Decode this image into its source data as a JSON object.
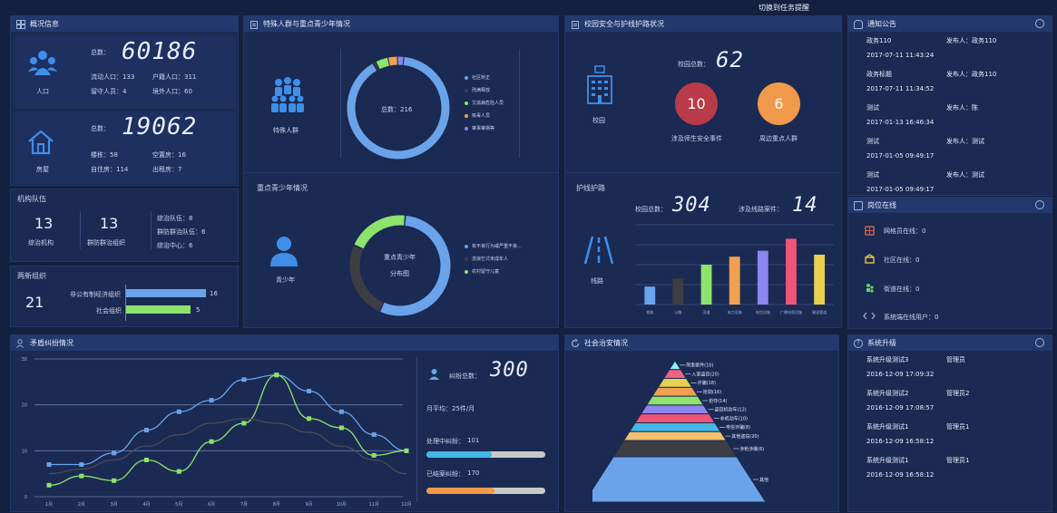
{
  "top_link": "切换到任务提醒",
  "overview": {
    "title": "概况信息",
    "population": {
      "label": "人口",
      "total_label": "总数：",
      "total": "60186",
      "items": [
        [
          "流动人口：133",
          "户籍人口：311"
        ],
        [
          "留守人员：4",
          "境外人口：60"
        ]
      ]
    },
    "housing": {
      "label": "房屋",
      "total_label": "总数：",
      "total": "19062",
      "items": [
        [
          "楼栋：58",
          "空置房：16"
        ],
        [
          "自住房：114",
          "出租房：7"
        ]
      ]
    }
  },
  "org": {
    "title": "机构队伍",
    "cols": [
      {
        "value": "13",
        "label": "综治机构"
      },
      {
        "value": "13",
        "label": "群防群治组织"
      }
    ],
    "list": [
      "综治队伍：8",
      "群防群治队伍：6",
      "综治中心：6"
    ]
  },
  "two_new": {
    "title": "两新组织",
    "total": "21",
    "bars": [
      {
        "label": "非公有制经济组织",
        "value": 16,
        "color": "#6aa3ea"
      },
      {
        "label": "社会组织",
        "value": 5,
        "color": "#8de36c"
      }
    ]
  },
  "special": {
    "title": "特殊人群与重点青少年情况",
    "group_label": "特殊人群",
    "center": "总数：216",
    "legend": [
      {
        "name": "社区矫正",
        "color": "#6aa3ea"
      },
      {
        "name": "刑满释放",
        "color": "#3d3d44"
      },
      {
        "name": "艾滋病危险人员",
        "color": "#8de36c"
      },
      {
        "name": "吸毒人员",
        "color": "#f0a050"
      },
      {
        "name": "肇事肇祸等",
        "color": "#8b86f0"
      }
    ],
    "shares": [
      0.9,
      0.01,
      0.04,
      0.03,
      0.02
    ]
  },
  "youth": {
    "title": "重点青少年情况",
    "label": "青少年",
    "center": [
      "重点青少年",
      "分布图"
    ],
    "legend": [
      {
        "name": "有不良行为或严重不良...",
        "color": "#6aa3ea"
      },
      {
        "name": "流浪乞讨未成年人",
        "color": "#3d3d44"
      },
      {
        "name": "农村留守儿童",
        "color": "#8de36c"
      }
    ],
    "shares": [
      0.55,
      0.25,
      0.2
    ]
  },
  "campus": {
    "title": "校园安全与护线护路状况",
    "label": "校园",
    "total_label": "校园总数：",
    "total": "62",
    "circles": [
      {
        "value": "10",
        "label": "涉及师生安全事件",
        "color": "#b93a48"
      },
      {
        "value": "6",
        "label": "周边重点人群",
        "color": "#f0994a"
      }
    ]
  },
  "road": {
    "title": "护线护路",
    "label": "线路",
    "total_label": "校园总数：",
    "total": "304",
    "cases_label": "涉及线路案件：",
    "cases": "14"
  },
  "road_chart": {
    "type": "bar",
    "categories": [
      "铁路",
      "公路",
      "河道",
      "电力设施",
      "电信设施",
      "广播电视设施",
      "输油管道"
    ],
    "values": [
      45,
      65,
      100,
      120,
      135,
      165,
      125
    ],
    "colors": [
      "#6aa3ea",
      "#3d3d44",
      "#8de36c",
      "#f0a050",
      "#8b86f0",
      "#ee5577",
      "#e8d050"
    ],
    "ylim": [
      0,
      200
    ]
  },
  "notice": {
    "title": "通知公告",
    "items": [
      {
        "title": "政务110",
        "publisher": "发布人：政务110",
        "date": "2017-07-11 11:43:24"
      },
      {
        "title": "政务标题",
        "publisher": "发布人：政务110",
        "date": "2017-07-11 11:34:52"
      },
      {
        "title": "测试",
        "publisher": "发布人：陈",
        "date": "2017-01-13 16:46:34"
      },
      {
        "title": "测试",
        "publisher": "发布人：测试",
        "date": "2017-01-05 09:49:17"
      },
      {
        "title": "测试",
        "publisher": "发布人：测试",
        "date": "2017-01-05 09:49:17"
      }
    ]
  },
  "online": {
    "title": "岗位在线",
    "items": [
      "网格员在线：0",
      "社区在线：0",
      "街道在线：0",
      "系统端在线用户：0"
    ]
  },
  "upgrade": {
    "title": "系统升级",
    "items": [
      {
        "title": "系统升级测试3",
        "user": "管理员",
        "date": "2016-12-09 17:09:32"
      },
      {
        "title": "系统升级测试2",
        "user": "管理员2",
        "date": "2016-12-09 17:08:57"
      },
      {
        "title": "系统升级测试1",
        "user": "管理员1",
        "date": "2016-12-09 16:58:12"
      },
      {
        "title": "系统升级测试1",
        "user": "管理员1",
        "date": "2016-12-09 16:58:12"
      }
    ]
  },
  "dispute": {
    "title": "矛盾纠纷情况",
    "total_label": "纠纷总数：",
    "total": "300",
    "monthly": "月平均：25件/月",
    "processing": {
      "label": "处理中纠纷：",
      "value": "101",
      "progress": 0.55,
      "color": "#45b7e6"
    },
    "closed": {
      "label": "已结案纠纷：",
      "value": "170",
      "progress": 0.57,
      "color": "#f0994a"
    }
  },
  "dispute_chart": {
    "type": "line",
    "categories": [
      "1月",
      "2月",
      "3月",
      "4月",
      "5月",
      "6月",
      "7月",
      "8月",
      "9月",
      "10月",
      "11月",
      "12月"
    ],
    "yticks": [
      "0",
      "10",
      "20",
      "30"
    ],
    "ylim": [
      0,
      30
    ],
    "series": [
      {
        "color": "#6aa3ea",
        "values": [
          7,
          7,
          9.5,
          14.5,
          18.5,
          21,
          25.5,
          26.5,
          23,
          18.5,
          13.5,
          10
        ]
      },
      {
        "color": "#8de36c",
        "values": [
          2.5,
          4.5,
          3.5,
          8,
          5.5,
          12,
          16,
          26.5,
          17,
          15,
          9,
          10
        ]
      },
      {
        "color": "#4a4a55",
        "values": [
          5,
          6,
          8,
          11,
          13.5,
          16,
          17,
          16,
          14,
          11,
          8,
          5
        ]
      }
    ]
  },
  "security": {
    "title": "社会治安情况",
    "labels": [
      "刑事案件(10)",
      "入室盗窃(20)",
      "诈骗(18)",
      "抢劫(16)",
      "抢夺(14)",
      "盗窃机动车(12)",
      "非机动车(10)",
      "电信诈骗(8)",
      "其他盗窃(20)",
      "涉枪涉爆(6)",
      "其他"
    ],
    "colors": [
      "#8ff0f0",
      "#f06080",
      "#e8d050",
      "#f0a050",
      "#8de36c",
      "#8b86f0",
      "#ee5577",
      "#45b7e6",
      "#f0c070",
      "#3d3d44",
      "#6aa3ea"
    ]
  }
}
